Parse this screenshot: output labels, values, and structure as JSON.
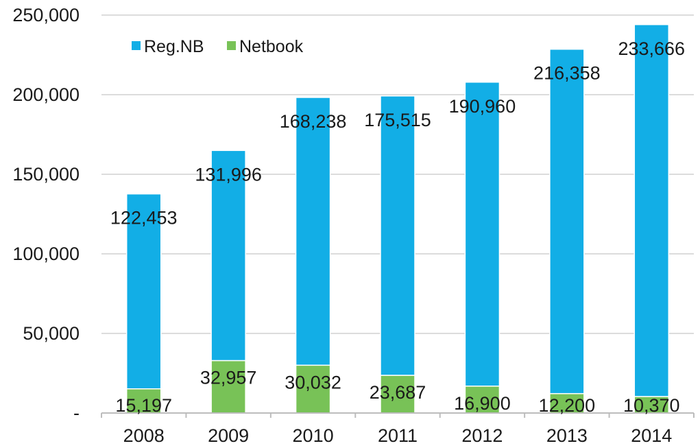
{
  "chart_data": {
    "type": "bar",
    "stacked": true,
    "title": "",
    "xlabel": "",
    "ylabel": "",
    "categories": [
      "2008",
      "2009",
      "2010",
      "2011",
      "2012",
      "2013",
      "2014"
    ],
    "series": [
      {
        "name": "Netbook",
        "color": "#78c257",
        "values": [
          15197,
          32957,
          30032,
          23687,
          16900,
          12200,
          10370
        ],
        "labels": [
          "15,197",
          "32,957",
          "30,032",
          "23,687",
          "16,900",
          "12,200",
          "10,370"
        ]
      },
      {
        "name": "Reg.NB",
        "color": "#12aee6",
        "values": [
          122453,
          131996,
          168238,
          175515,
          190960,
          216358,
          233666
        ],
        "labels": [
          "122,453",
          "131,996",
          "168,238",
          "175,515",
          "190,960",
          "216,358",
          "233,666"
        ]
      }
    ],
    "ylim": [
      0,
      250000
    ],
    "yticks": [
      0,
      50000,
      100000,
      150000,
      200000,
      250000
    ],
    "ytick_labels": [
      "-",
      "50,000",
      "100,000",
      "150,000",
      "200,000",
      "250,000"
    ],
    "grid": true,
    "legend": {
      "placement": "top-left",
      "entries": [
        "Reg.NB",
        "Netbook"
      ]
    }
  }
}
